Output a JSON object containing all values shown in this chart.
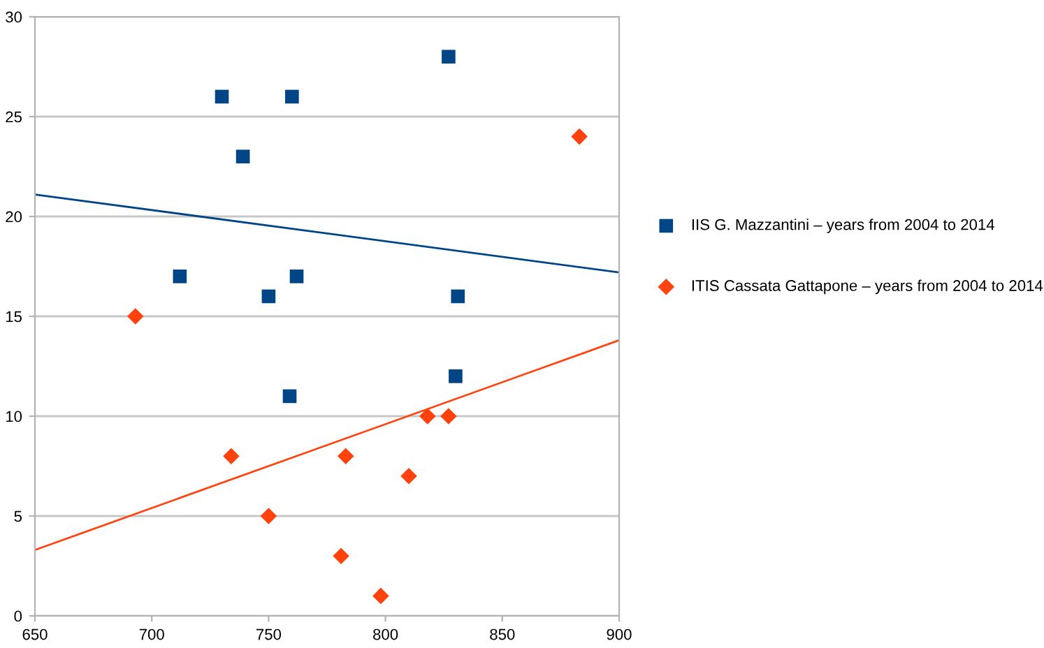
{
  "chart_data": {
    "type": "scatter",
    "series": [
      {
        "name": "IIS G. Mazzantini – years from 2004 to 2014",
        "color": "#004586",
        "marker": "square",
        "x": [
          712,
          730,
          739,
          750,
          759,
          760,
          762,
          827,
          830,
          831
        ],
        "values": [
          17,
          26,
          23,
          16,
          11,
          26,
          17,
          28,
          12,
          16
        ]
      },
      {
        "name": "ITIS Cassata Gattapone – years from 2004 to 2014",
        "color": "#ff420e",
        "marker": "diamond",
        "x": [
          693,
          734,
          750,
          781,
          783,
          798,
          810,
          818,
          827,
          883
        ],
        "values": [
          15,
          8,
          5,
          3,
          8,
          1,
          7,
          10,
          10,
          24
        ]
      },
      {
        "type": "line",
        "color": "#004586",
        "x": [
          650,
          900
        ],
        "values": [
          21.1,
          17.2
        ]
      },
      {
        "type": "line",
        "color": "#ff420e",
        "x": [
          650,
          900
        ],
        "values": [
          3.3,
          13.8
        ]
      }
    ],
    "xlim": [
      650,
      900
    ],
    "xticks": [
      650,
      700,
      750,
      800,
      850,
      900
    ],
    "ylim": [
      0,
      30
    ],
    "yticks": [
      0,
      5,
      10,
      15,
      20,
      25,
      30
    ],
    "grid": "y",
    "legend": "right"
  }
}
